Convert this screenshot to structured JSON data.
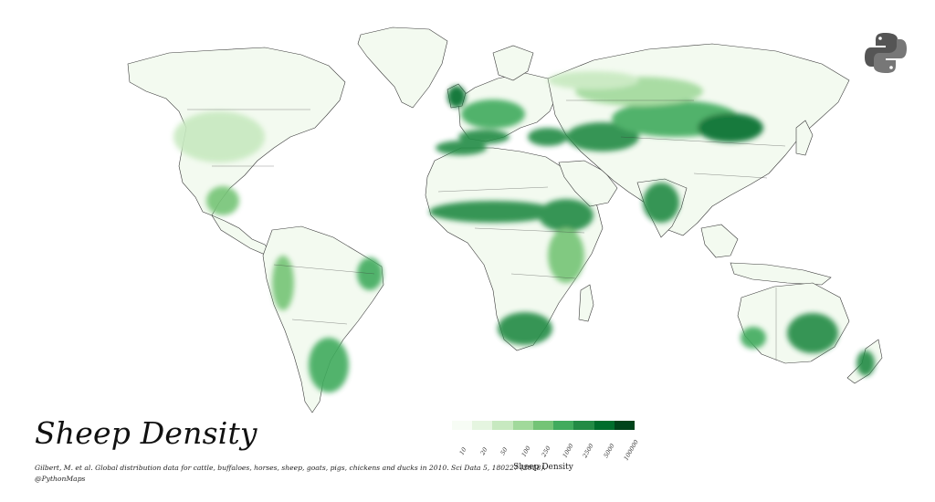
{
  "title": "Sheep Density",
  "citation": "Gilbert, M. et al. Global distribution data for cattle, buffaloes, horses, sheep, goats, pigs, chickens and ducks in 2010. Sci Data 5, 180227 (2018).",
  "handle": "@PythonMaps",
  "legend": {
    "title": "Sheep Density",
    "ticks": [
      "10",
      "20",
      "50",
      "100",
      "250",
      "1000",
      "2500",
      "5000",
      "100000"
    ],
    "colors": [
      "#f7fcf5",
      "#e5f5e0",
      "#c7e9c0",
      "#a1d99b",
      "#74c476",
      "#41ab5d",
      "#238b45",
      "#006d2c",
      "#00441b"
    ]
  },
  "map": {
    "ocean_color": "#ffffff",
    "land_base_color": "#f3faf0",
    "border_color": "#3a3a3a",
    "logo_icon": "python-logo-icon"
  }
}
